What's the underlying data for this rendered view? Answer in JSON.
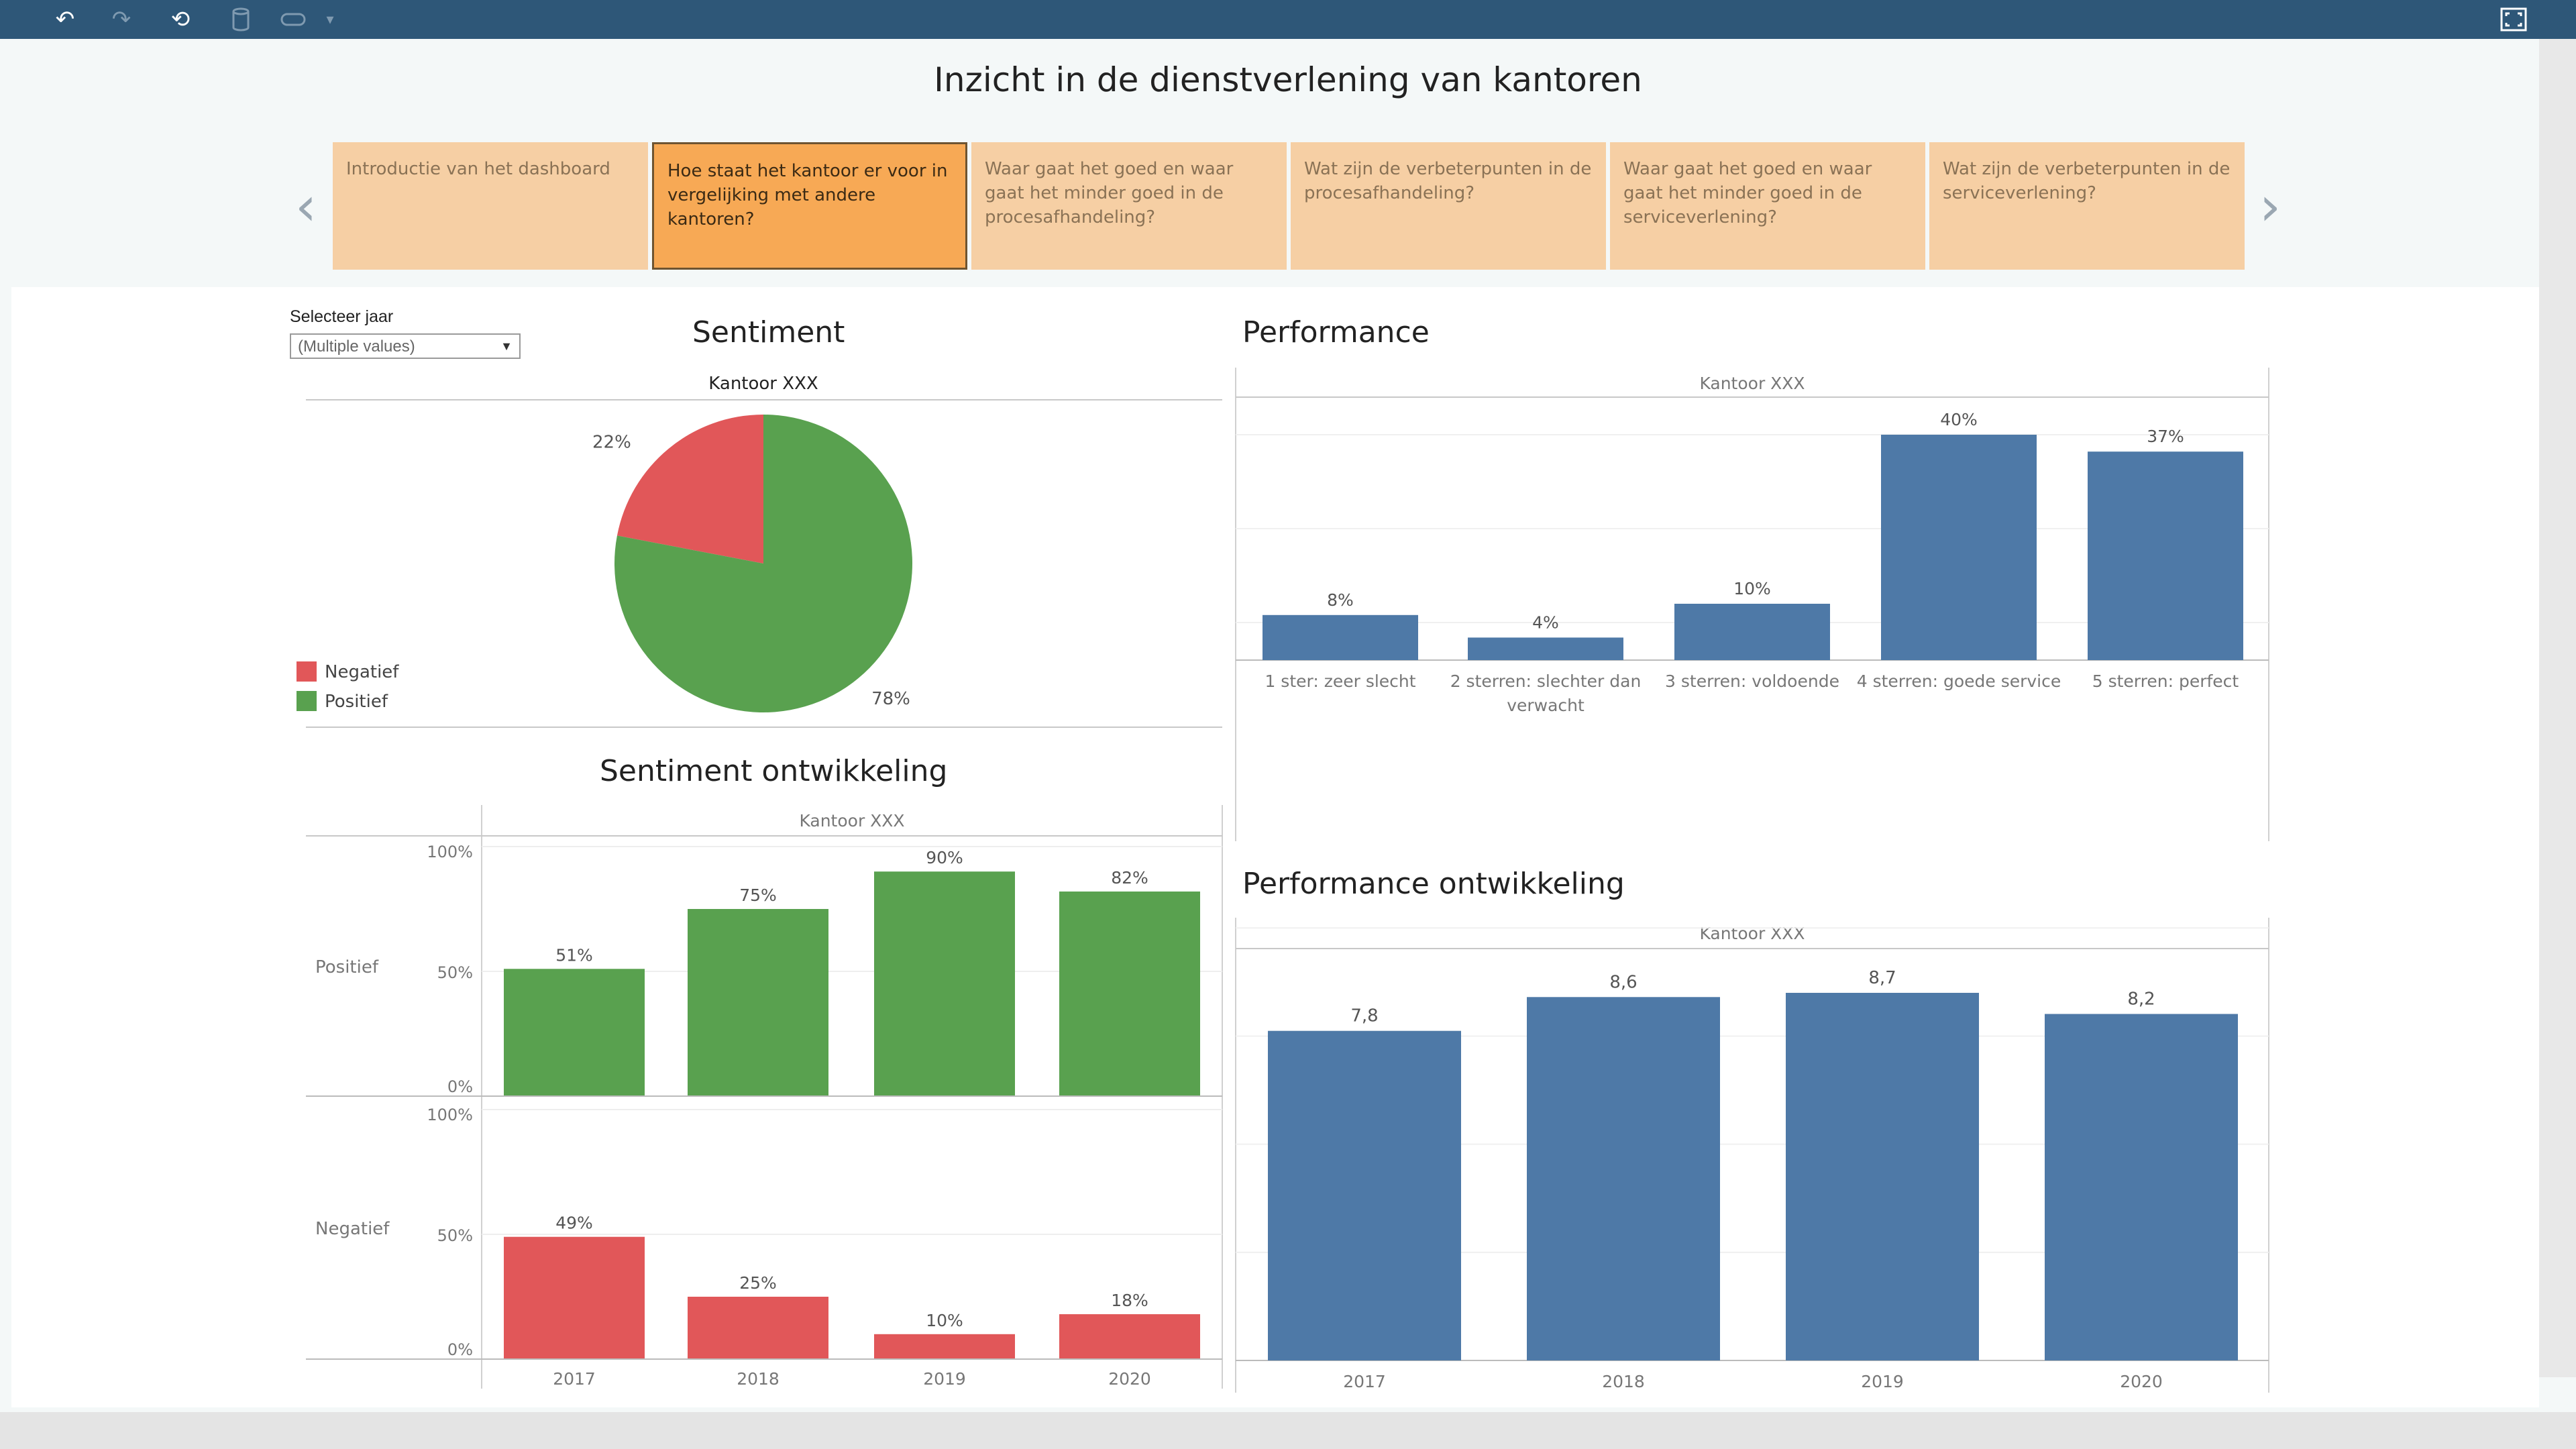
{
  "toolbar": {
    "icons": [
      "undo-icon",
      "redo-icon",
      "revert-icon",
      "datasource-icon",
      "pause-icon",
      "dropdown-icon",
      "fullscreen-icon"
    ]
  },
  "story": {
    "title": "Inzicht in de dienstverlening van kantoren",
    "points": [
      {
        "label": "Introductie van het dashboard",
        "active": false
      },
      {
        "label": "Hoe staat het kantoor er voor in vergelijking met andere kantoren?",
        "active": true
      },
      {
        "label": "Waar gaat het goed en waar gaat het minder goed in de procesafhandeling?",
        "active": false
      },
      {
        "label": "Wat zijn de verbeterpunten in de procesafhandeling?",
        "active": false
      },
      {
        "label": "Waar gaat het goed en waar gaat het minder goed in de serviceverlening?",
        "active": false
      },
      {
        "label": "Wat zijn de verbeterpunten in de serviceverlening?",
        "active": false
      }
    ]
  },
  "filter": {
    "label": "Selecteer jaar",
    "value": "(Multiple values)"
  },
  "colors": {
    "positive": "#59a14f",
    "negative": "#e15759",
    "blue": "#4e79a7",
    "story_active": "#f7a955",
    "story_inactive": "#f6cfa4",
    "toolbar": "#2e5778"
  },
  "chart_data": [
    {
      "id": "sentiment",
      "type": "pie",
      "title": "Sentiment",
      "header": "Kantoor XXX",
      "legend": [
        "Negatief",
        "Positief"
      ],
      "slices": [
        {
          "name": "Negatief",
          "value": 22,
          "label": "22%"
        },
        {
          "name": "Positief",
          "value": 78,
          "label": "78%"
        }
      ]
    },
    {
      "id": "sentiment_ontwikkeling",
      "type": "bar",
      "title": "Sentiment ontwikkeling",
      "header": "Kantoor XXX",
      "categories": [
        "2017",
        "2018",
        "2019",
        "2020"
      ],
      "ylim": [
        0,
        100
      ],
      "yticks": [
        "100%",
        "50%",
        "0%"
      ],
      "series": [
        {
          "name": "Positief",
          "values": [
            51,
            75,
            90,
            82
          ],
          "labels": [
            "51%",
            "75%",
            "90%",
            "82%"
          ]
        },
        {
          "name": "Negatief",
          "values": [
            49,
            25,
            10,
            18
          ],
          "labels": [
            "49%",
            "25%",
            "10%",
            "18%"
          ]
        }
      ]
    },
    {
      "id": "performance",
      "type": "bar",
      "title": "Performance",
      "header": "Kantoor XXX",
      "categories": [
        "1 ster: zeer slecht",
        "2 sterren: slechter dan verwacht",
        "3 sterren: voldoende",
        "4 sterren: goede service",
        "5 sterren: perfect"
      ],
      "values": [
        8,
        4,
        10,
        40,
        37
      ],
      "labels": [
        "8%",
        "4%",
        "10%",
        "40%",
        "37%"
      ],
      "ylim": [
        0,
        40
      ]
    },
    {
      "id": "performance_ontwikkeling",
      "type": "bar",
      "title": "Performance ontwikkeling",
      "header": "Kantoor XXX",
      "categories": [
        "2017",
        "2018",
        "2019",
        "2020"
      ],
      "values": [
        7.8,
        8.6,
        8.7,
        8.2
      ],
      "labels": [
        "7,8",
        "8,6",
        "8,7",
        "8,2"
      ],
      "ylim": [
        0,
        8.7
      ]
    }
  ]
}
